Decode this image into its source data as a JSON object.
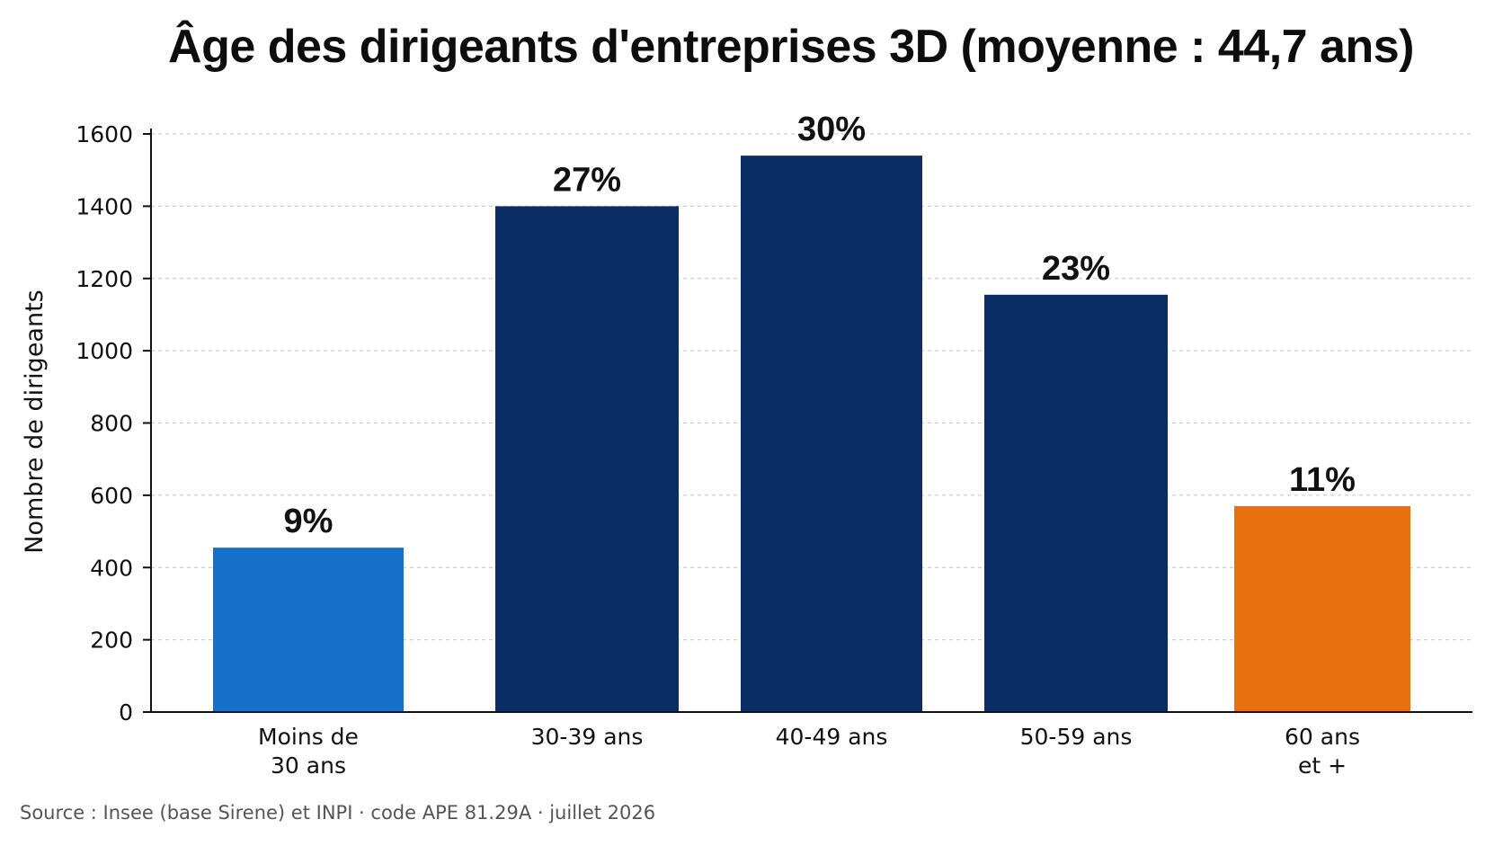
{
  "chart_data": {
    "type": "bar",
    "title": "Âge des dirigeants d'entreprises 3D (moyenne : 44,7 ans)",
    "xlabel": "",
    "ylabel": "Nombre de dirigeants",
    "ylim": [
      0,
      1600
    ],
    "yticks": [
      "0",
      "200",
      "400",
      "600",
      "800",
      "1000",
      "1200",
      "1400",
      "1600"
    ],
    "grid": true,
    "categories": [
      [
        "Moins de",
        "30 ans"
      ],
      [
        "30-39 ans"
      ],
      [
        "40-49 ans"
      ],
      [
        "50-59 ans"
      ],
      [
        "60 ans",
        "et +"
      ]
    ],
    "values": [
      455,
      1400,
      1540,
      1155,
      570
    ],
    "data_labels": [
      "9%",
      "27%",
      "30%",
      "23%",
      "11%"
    ],
    "colors": [
      "#1470C8",
      "#0A2D63",
      "#0A2D63",
      "#0A2D63",
      "#E8700F"
    ]
  },
  "source": "Source : Insee (base Sirene) et INPI · code APE 81.29A · juillet 2026"
}
